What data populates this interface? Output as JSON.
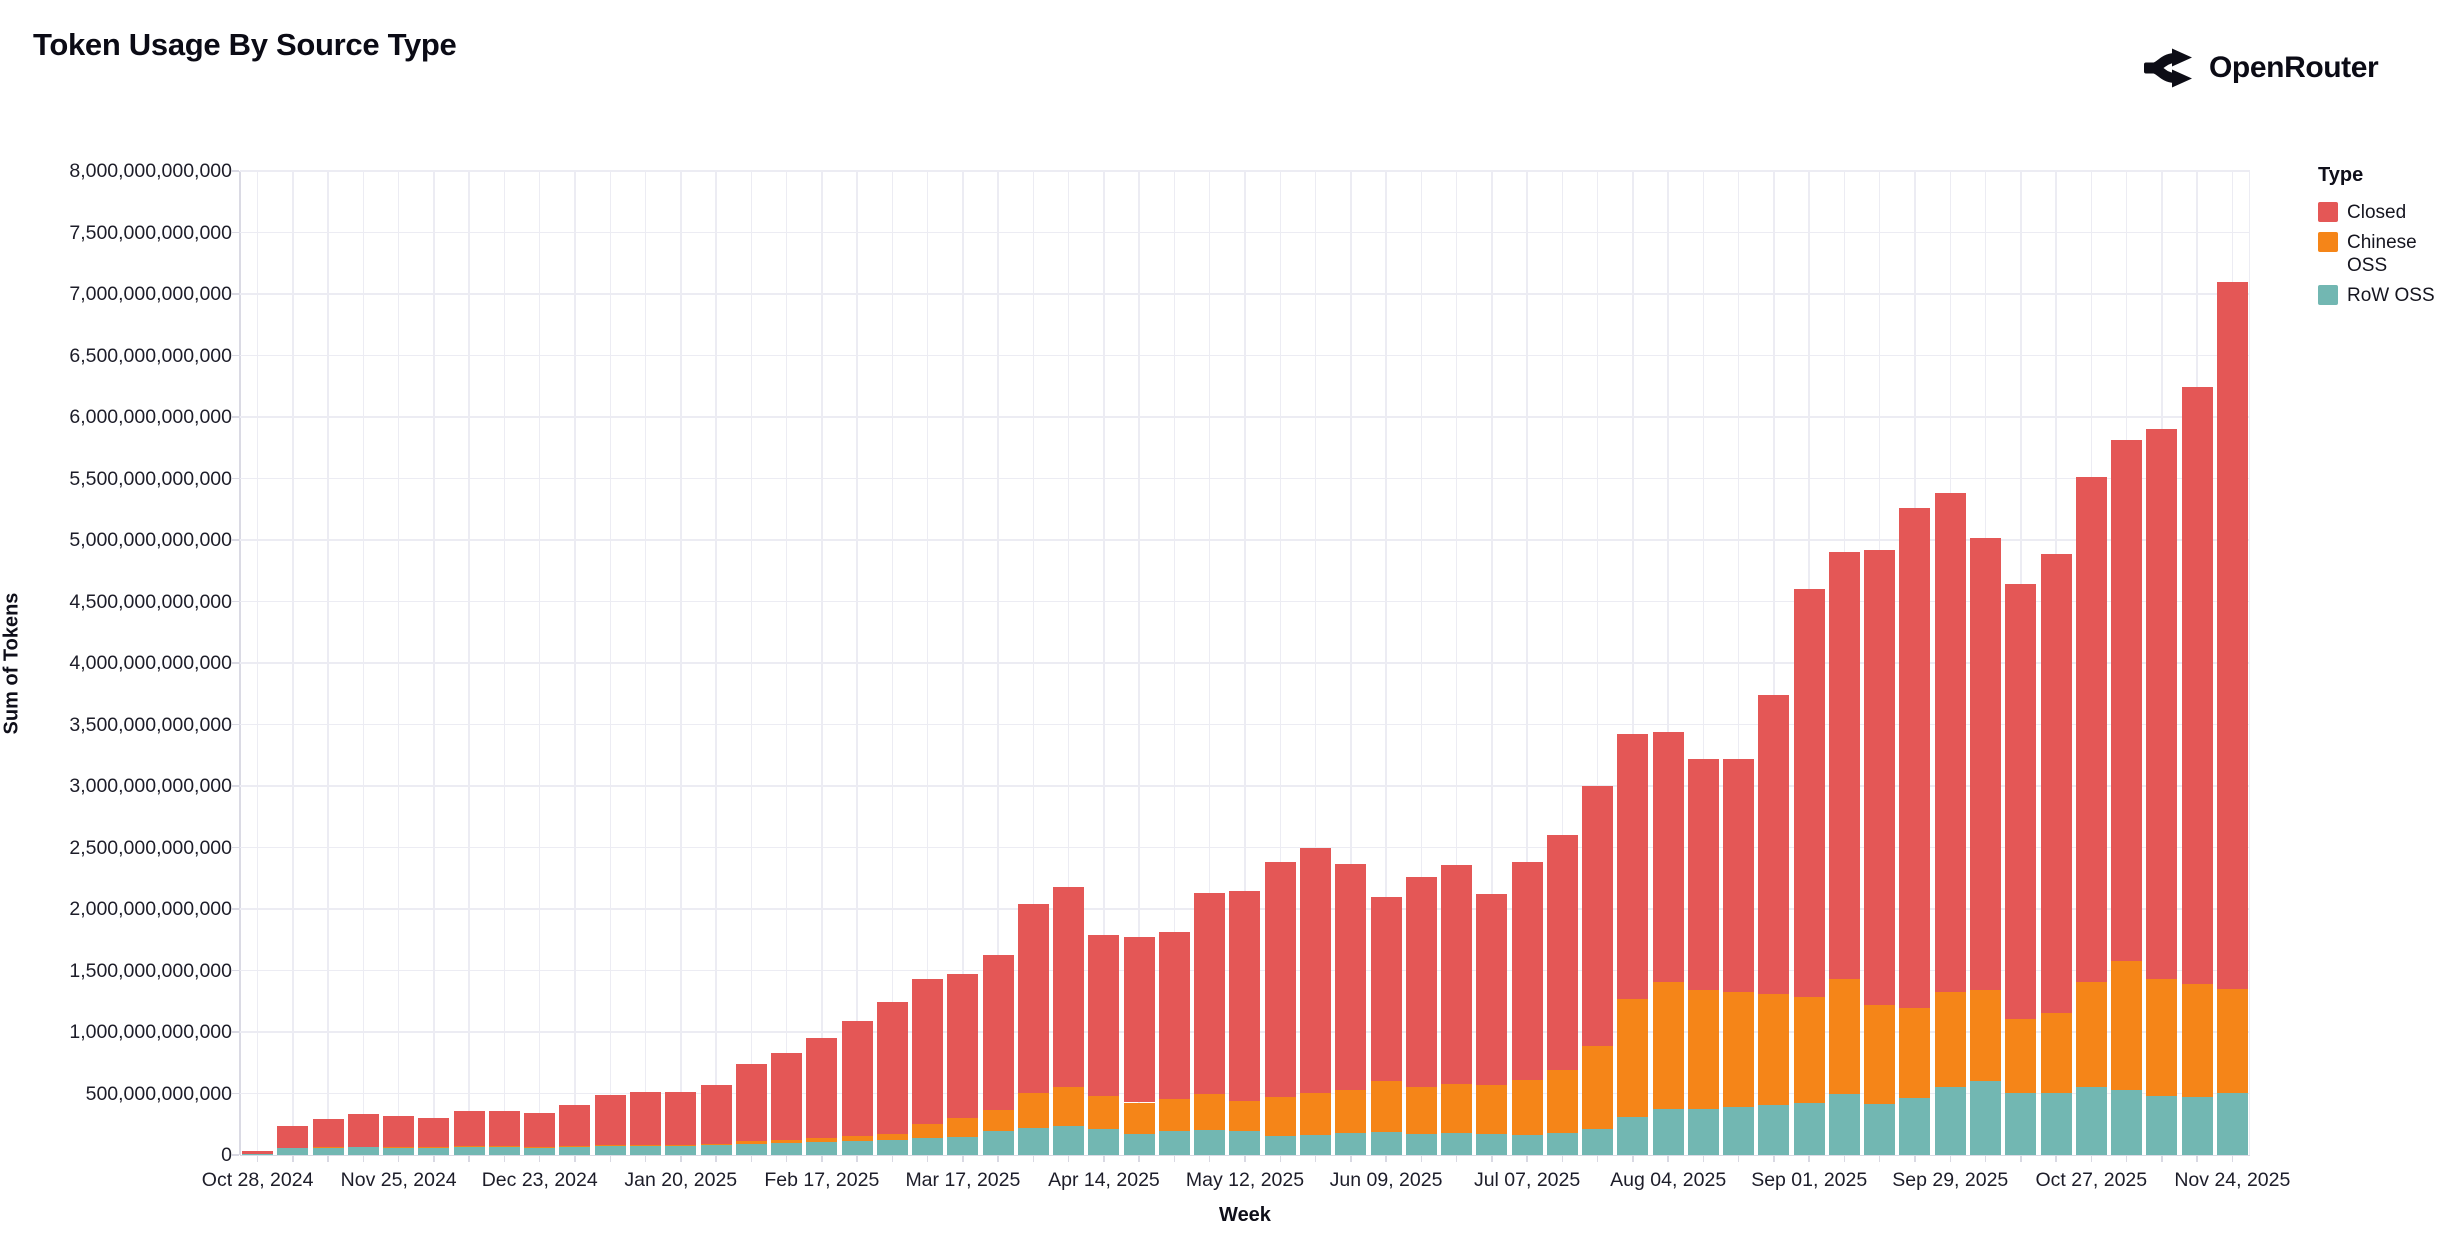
{
  "header": {
    "title": "Token Usage By Source Type",
    "brand": "OpenRouter"
  },
  "chart_data": {
    "type": "bar",
    "stacked": true,
    "title": "Token Usage By Source Type",
    "xlabel": "Week",
    "ylabel": "Sum of Tokens",
    "ylim": [
      0,
      8000000000000
    ],
    "yticks": [
      0,
      500000000000,
      1000000000000,
      1500000000000,
      2000000000000,
      2500000000000,
      3000000000000,
      3500000000000,
      4000000000000,
      4500000000000,
      5000000000000,
      5500000000000,
      6000000000000,
      6500000000000,
      7000000000000,
      7500000000000,
      8000000000000
    ],
    "grid": true,
    "legend_title": "Type",
    "legend_position": "right",
    "values_unit": "billions_of_tokens",
    "value_unit_multiplier": 1000000000,
    "x_ticks_shown": [
      "Oct 28, 2024",
      "Nov 25, 2024",
      "Dec 23, 2024",
      "Jan 20, 2025",
      "Feb 17, 2025",
      "Mar 17, 2025",
      "Apr 14, 2025",
      "May 12, 2025",
      "Jun 09, 2025",
      "Jul 07, 2025",
      "Aug 04, 2025",
      "Sep 01, 2025",
      "Sep 29, 2025",
      "Oct 27, 2025",
      "Nov 24, 2025"
    ],
    "x_tick_every": 4,
    "categories": [
      "Oct 28, 2024",
      "Nov 04, 2024",
      "Nov 11, 2024",
      "Nov 18, 2024",
      "Nov 25, 2024",
      "Dec 02, 2024",
      "Dec 09, 2024",
      "Dec 16, 2024",
      "Dec 23, 2024",
      "Dec 30, 2024",
      "Jan 06, 2025",
      "Jan 13, 2025",
      "Jan 20, 2025",
      "Jan 27, 2025",
      "Feb 03, 2025",
      "Feb 10, 2025",
      "Feb 17, 2025",
      "Feb 24, 2025",
      "Mar 03, 2025",
      "Mar 10, 2025",
      "Mar 17, 2025",
      "Mar 24, 2025",
      "Mar 31, 2025",
      "Apr 07, 2025",
      "Apr 14, 2025",
      "Apr 21, 2025",
      "Apr 28, 2025",
      "May 05, 2025",
      "May 12, 2025",
      "May 19, 2025",
      "May 26, 2025",
      "Jun 02, 2025",
      "Jun 09, 2025",
      "Jun 16, 2025",
      "Jun 23, 2025",
      "Jun 30, 2025",
      "Jul 07, 2025",
      "Jul 14, 2025",
      "Jul 21, 2025",
      "Jul 28, 2025",
      "Aug 04, 2025",
      "Aug 11, 2025",
      "Aug 18, 2025",
      "Aug 25, 2025",
      "Sep 01, 2025",
      "Sep 08, 2025",
      "Sep 15, 2025",
      "Sep 22, 2025",
      "Sep 29, 2025",
      "Oct 06, 2025",
      "Oct 13, 2025",
      "Oct 20, 2025",
      "Oct 27, 2025",
      "Nov 03, 2025",
      "Nov 10, 2025",
      "Nov 17, 2025",
      "Nov 24, 2025"
    ],
    "series": [
      {
        "name": "Closed",
        "color": "#e45756",
        "values": [
          20,
          175,
          225,
          267,
          254,
          241,
          290,
          290,
          277,
          332,
          408,
          430,
          425,
          478,
          628,
          704,
          808,
          938,
          1070,
          1180,
          1171,
          1260,
          1537,
          1623,
          1309,
          1343,
          1356,
          1635,
          1710,
          1912,
          1992,
          1842,
          1502,
          1705,
          1783,
          1552,
          1771,
          1909,
          2111,
          2152,
          2031,
          1878,
          1892,
          2434,
          3318,
          3472,
          3700,
          4067,
          4052,
          3678,
          3534,
          3738,
          4101,
          4233,
          4472,
          4850,
          5753
        ]
      },
      {
        "name": "Chinese OSS",
        "color": "#f58518",
        "values": [
          2,
          5,
          5,
          6,
          6,
          6,
          8,
          8,
          8,
          8,
          10,
          10,
          10,
          14,
          22,
          28,
          34,
          40,
          48,
          114,
          152,
          174,
          280,
          320,
          271,
          258,
          258,
          291,
          244,
          313,
          347,
          346,
          410,
          381,
          395,
          394,
          449,
          509,
          679,
          961,
          1034,
          967,
          940,
          898,
          861,
          934,
          804,
          731,
          773,
          744,
          598,
          644,
          860,
          1052,
          952,
          922,
          844
        ]
      },
      {
        "name": "RoW OSS",
        "color": "#72b7b2",
        "values": [
          8,
          55,
          60,
          62,
          60,
          58,
          62,
          62,
          60,
          65,
          72,
          75,
          75,
          78,
          90,
          98,
          108,
          112,
          122,
          136,
          147,
          196,
          223,
          237,
          210,
          169,
          196,
          204,
          196,
          155,
          161,
          182,
          188,
          174,
          182,
          174,
          160,
          182,
          210,
          307,
          375,
          375,
          388,
          408,
          421,
          494,
          416,
          462,
          555,
          598,
          508,
          508,
          549,
          525,
          476,
          468,
          503
        ]
      }
    ],
    "stack_bottom_to_top": [
      "RoW OSS",
      "Chinese OSS",
      "Closed"
    ]
  }
}
